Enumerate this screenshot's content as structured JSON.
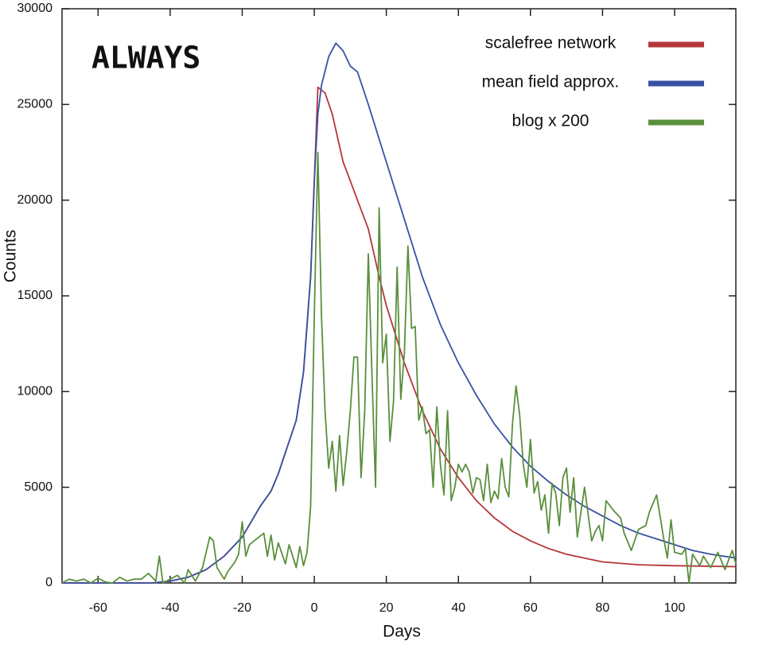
{
  "chart_data": {
    "type": "line",
    "annotation": "ALWAYS",
    "xlabel": "Days",
    "ylabel": "Counts",
    "xlim": [
      -70,
      117
    ],
    "ylim": [
      0,
      30000
    ],
    "xticks": [
      -60,
      -40,
      -20,
      0,
      20,
      40,
      60,
      80,
      100
    ],
    "yticks": [
      0,
      5000,
      10000,
      15000,
      20000,
      25000,
      30000
    ],
    "legend": "upper right",
    "series": [
      {
        "name": "scalefree network",
        "color": "#b5363a",
        "x": [
          -70,
          -45,
          -40,
          -35,
          -30,
          -25,
          -20,
          -15,
          -12,
          -10,
          -5,
          -3,
          -1,
          0,
          1,
          3,
          5,
          8,
          10,
          12,
          15,
          18,
          20,
          25,
          30,
          35,
          40,
          45,
          50,
          55,
          60,
          65,
          70,
          75,
          80,
          90,
          100,
          117
        ],
        "values": [
          0,
          0,
          100,
          300,
          700,
          1400,
          2400,
          4000,
          4800,
          5700,
          8500,
          11000,
          16000,
          21000,
          25900,
          25600,
          24500,
          22000,
          21000,
          20000,
          18500,
          16000,
          14500,
          11500,
          9000,
          7000,
          5500,
          4300,
          3400,
          2700,
          2200,
          1800,
          1500,
          1300,
          1100,
          950,
          900,
          850
        ]
      },
      {
        "name": "mean field approx.",
        "color": "#3752a3",
        "x": [
          -70,
          -45,
          -40,
          -35,
          -30,
          -25,
          -20,
          -15,
          -12,
          -10,
          -5,
          -3,
          -1,
          0,
          1,
          2,
          4,
          6,
          8,
          10,
          12,
          15,
          20,
          25,
          30,
          35,
          40,
          45,
          50,
          55,
          60,
          65,
          70,
          75,
          80,
          85,
          90,
          95,
          100,
          105,
          110,
          117
        ],
        "values": [
          0,
          0,
          100,
          300,
          700,
          1400,
          2400,
          4000,
          4800,
          5700,
          8500,
          11000,
          16000,
          21000,
          24500,
          26000,
          27500,
          28200,
          27800,
          27000,
          26700,
          25000,
          22000,
          19000,
          16000,
          13500,
          11500,
          9800,
          8300,
          7100,
          6100,
          5300,
          4600,
          4000,
          3500,
          3000,
          2600,
          2300,
          2000,
          1700,
          1500,
          1300
        ]
      },
      {
        "name": "blog x 200",
        "color": "#5a8f3c",
        "x": [
          -70,
          -68,
          -66,
          -64,
          -62,
          -60,
          -58,
          -56,
          -54,
          -52,
          -50,
          -48,
          -46,
          -44,
          -43,
          -42,
          -40,
          -38,
          -36,
          -35,
          -33,
          -31,
          -29,
          -28,
          -27,
          -25,
          -24,
          -22,
          -21,
          -20,
          -19,
          -18,
          -16,
          -14,
          -13,
          -12,
          -11,
          -10,
          -8,
          -7,
          -5,
          -4,
          -3,
          -2,
          -1,
          0,
          1,
          2,
          3,
          4,
          5,
          6,
          7,
          8,
          9,
          10,
          11,
          12,
          13,
          14,
          15,
          16,
          17,
          18,
          19,
          20,
          21,
          22,
          23,
          24,
          25,
          26,
          27,
          28,
          29,
          30,
          31,
          32,
          33,
          34,
          35,
          36,
          37,
          38,
          39,
          40,
          41,
          42,
          43,
          44,
          45,
          46,
          47,
          48,
          49,
          50,
          51,
          52,
          53,
          54,
          55,
          56,
          57,
          58,
          59,
          60,
          61,
          62,
          63,
          64,
          65,
          66,
          67,
          68,
          69,
          70,
          71,
          72,
          73,
          75,
          77,
          78,
          79,
          80,
          81,
          83,
          85,
          86,
          88,
          90,
          92,
          93,
          95,
          97,
          98,
          99,
          100,
          102,
          103,
          104,
          105,
          107,
          108,
          110,
          112,
          114,
          116,
          117
        ],
        "values": [
          0,
          200,
          100,
          200,
          0,
          250,
          50,
          0,
          300,
          100,
          200,
          200,
          500,
          100,
          1400,
          0,
          200,
          400,
          0,
          700,
          100,
          800,
          2400,
          2200,
          800,
          200,
          600,
          1100,
          1500,
          3200,
          1400,
          2000,
          2300,
          2600,
          1400,
          2500,
          1200,
          2100,
          1000,
          2000,
          800,
          1900,
          900,
          1600,
          4000,
          14000,
          22500,
          14000,
          9000,
          6000,
          7400,
          4800,
          7700,
          5100,
          6800,
          9000,
          11800,
          11800,
          5500,
          9000,
          17200,
          11000,
          5000,
          19600,
          11500,
          13000,
          7400,
          9500,
          16500,
          9600,
          12000,
          17600,
          13300,
          13400,
          8500,
          9200,
          7800,
          8000,
          5000,
          9200,
          6200,
          4600,
          9000,
          4300,
          5000,
          6200,
          5800,
          6200,
          5800,
          4700,
          5500,
          5400,
          4300,
          6200,
          4200,
          4800,
          4400,
          6500,
          5000,
          4500,
          8300,
          10300,
          8800,
          6200,
          5000,
          7500,
          4700,
          5300,
          3800,
          4600,
          2600,
          5200,
          4700,
          3000,
          5500,
          6000,
          3700,
          5500,
          2400,
          5000,
          2200,
          2700,
          3000,
          2200,
          4300,
          3800,
          3400,
          2600,
          1700,
          2800,
          3000,
          3700,
          4600,
          2300,
          1300,
          3300,
          1600,
          1500,
          1800,
          0,
          1500,
          900,
          1400,
          800,
          1600,
          700,
          1700,
          1000
        ]
      }
    ]
  }
}
